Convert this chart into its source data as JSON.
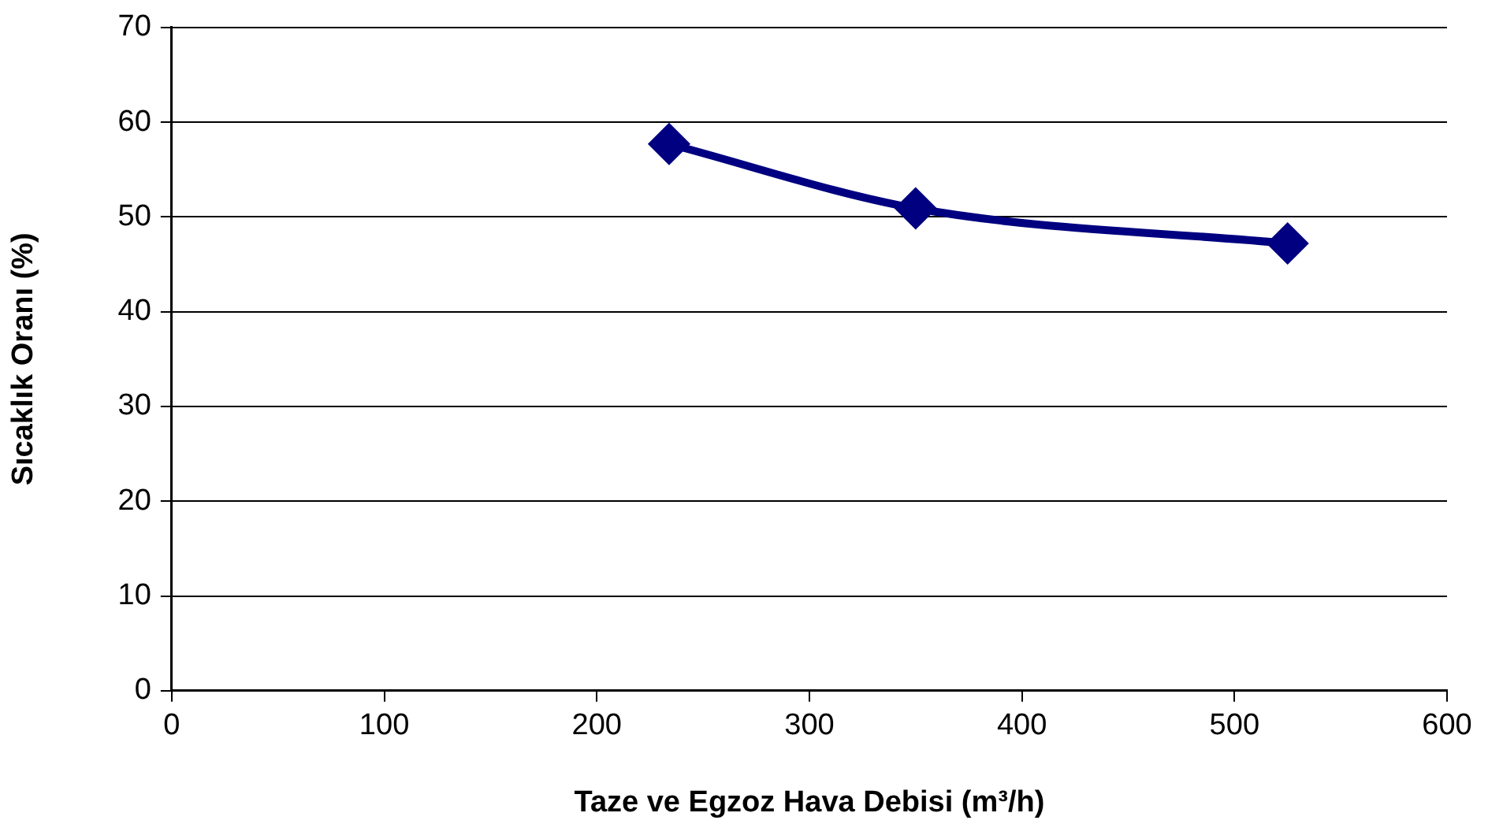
{
  "chart_data": {
    "type": "line",
    "xlabel": "Taze ve Egzoz Hava Debisi (m³/h)",
    "ylabel": "Sıcaklık Oranı (%)",
    "series": [
      {
        "x": [
          234,
          350,
          525
        ],
        "values": [
          57.7,
          50.9,
          47.2
        ],
        "color": "#000080"
      }
    ],
    "xlim": [
      0,
      600
    ],
    "xticks": [
      0,
      100,
      200,
      300,
      400,
      500,
      600
    ],
    "ylim": [
      0,
      70
    ],
    "yticks": [
      0,
      10,
      20,
      30,
      40,
      50,
      60,
      70
    ],
    "grid": "y",
    "legend": false,
    "marker": "diamond",
    "line_style": "solid"
  }
}
